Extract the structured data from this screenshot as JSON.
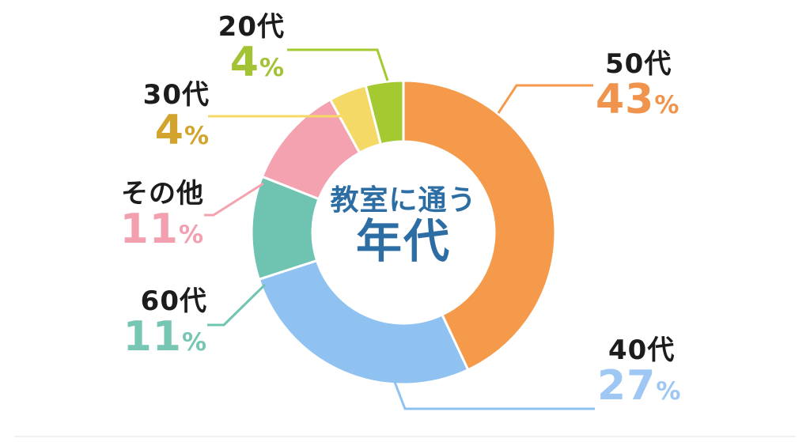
{
  "title": {
    "line1": "教室に通う",
    "line2": "年代"
  },
  "percent_sign": "%",
  "colors": {
    "background": "#FFFFFF",
    "center_text": "#2C6DA4",
    "label_text": "#1C1C1C",
    "slice_gap": "#FFFFFF"
  },
  "chart_data": {
    "type": "pie",
    "subtype": "donut",
    "title": "教室に通う年代",
    "unit": "%",
    "total": 100,
    "start_angle_deg": 0,
    "direction": "clockwise",
    "legend_position": "around",
    "segments": [
      {
        "label": "50代",
        "value": 43,
        "color": "#F5994B",
        "text_color": "#F0944D"
      },
      {
        "label": "40代",
        "value": 27,
        "color": "#90C2F1",
        "text_color": "#9EC7F3"
      },
      {
        "label": "60代",
        "value": 11,
        "color": "#6EC4B0",
        "text_color": "#77C6B3"
      },
      {
        "label": "その他",
        "value": 11,
        "color": "#F4A2B0",
        "text_color": "#F29FAF"
      },
      {
        "label": "30代",
        "value": 4,
        "color": "#F4D967",
        "text_color": "#D2A42E"
      },
      {
        "label": "20代",
        "value": 4,
        "color": "#A5C930",
        "text_color": "#A3C335"
      }
    ]
  }
}
